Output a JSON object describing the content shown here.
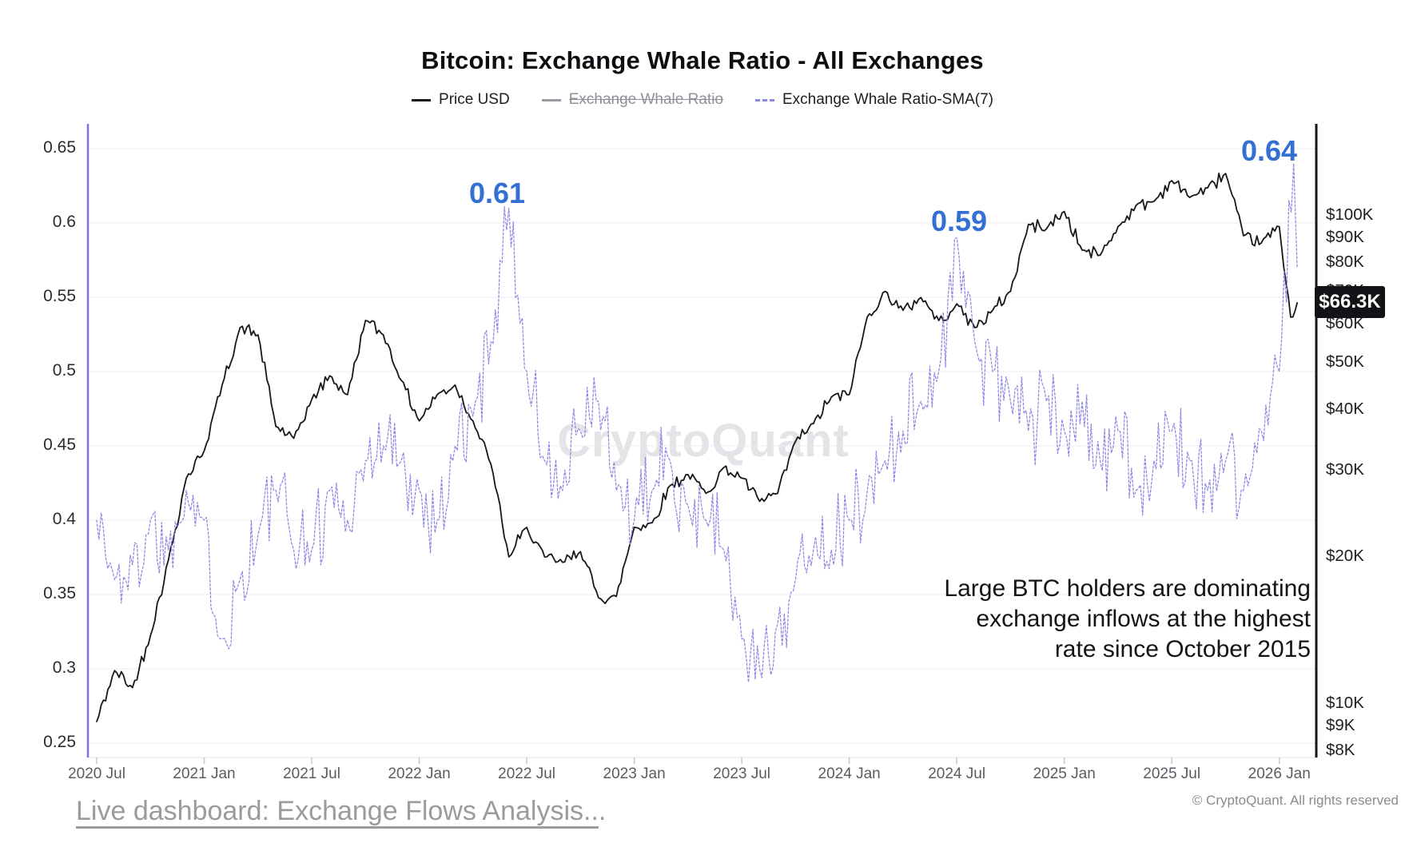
{
  "title": "Bitcoin: Exchange Whale Ratio - All Exchanges",
  "watermark": "CryptoQuant",
  "legend": {
    "items": [
      {
        "label": "Price USD",
        "swatch_color": "#17171c",
        "style": "solid",
        "disabled": false
      },
      {
        "label": "Exchange Whale Ratio",
        "swatch_color": "#9a9aa2",
        "style": "solid",
        "disabled": true
      },
      {
        "label": "Exchange Whale Ratio-SMA(7)",
        "swatch_color": "#8c86e4",
        "style": "dashed",
        "disabled": false
      }
    ]
  },
  "note": {
    "line1": "Large BTC holders are dominating",
    "line2": "exchange inflows at the highest",
    "line3": "rate since October 2015"
  },
  "footer": {
    "link_text": "Live dashboard: Exchange Flows Analysis..",
    "suffix": ".",
    "copyright": "© CryptoQuant. All rights reserved"
  },
  "chart_data": {
    "type": "line",
    "title": "Bitcoin: Exchange Whale Ratio - All Exchanges",
    "grid": "horizontal",
    "legend_position": "top",
    "annotation_color": "#3470d4",
    "last_price_label": "$66.3K",
    "y_left": {
      "label": "Exchange Whale Ratio-SMA(7)",
      "range": [
        0.25,
        0.65
      ],
      "ticks": [
        {
          "label": "0.65",
          "value": 0.65
        },
        {
          "label": "0.6",
          "value": 0.6
        },
        {
          "label": "0.55",
          "value": 0.55
        },
        {
          "label": "0.5",
          "value": 0.5
        },
        {
          "label": "0.45",
          "value": 0.45
        },
        {
          "label": "0.4",
          "value": 0.4
        },
        {
          "label": "0.35",
          "value": 0.35
        },
        {
          "label": "0.3",
          "value": 0.3
        },
        {
          "label": "0.25",
          "value": 0.25
        }
      ]
    },
    "y_right": {
      "label": "Price USD",
      "scale": "log",
      "range_thousands": [
        8,
        150
      ],
      "ticks": [
        {
          "label": "$100K",
          "value": 100
        },
        {
          "label": "$90K",
          "value": 90
        },
        {
          "label": "$80K",
          "value": 80
        },
        {
          "label": "$70K",
          "value": 70
        },
        {
          "label": "$60K",
          "value": 60
        },
        {
          "label": "$50K",
          "value": 50
        },
        {
          "label": "$40K",
          "value": 40
        },
        {
          "label": "$30K",
          "value": 30
        },
        {
          "label": "$20K",
          "value": 20
        },
        {
          "label": "$10K",
          "value": 10
        },
        {
          "label": "$9K",
          "value": 9
        },
        {
          "label": "$8K",
          "value": 8
        }
      ]
    },
    "x_axis": {
      "ticks": [
        {
          "label": "2020 Jul",
          "date": "2020-07"
        },
        {
          "label": "2021 Jan",
          "date": "2021-01"
        },
        {
          "label": "2021 Jul",
          "date": "2021-07"
        },
        {
          "label": "2022 Jan",
          "date": "2022-01"
        },
        {
          "label": "2022 Jul",
          "date": "2022-07"
        },
        {
          "label": "2023 Jan",
          "date": "2023-01"
        },
        {
          "label": "2023 Jul",
          "date": "2023-07"
        },
        {
          "label": "2024 Jan",
          "date": "2024-01"
        },
        {
          "label": "2024 Jul",
          "date": "2024-07"
        },
        {
          "label": "2025 Jan",
          "date": "2025-01"
        },
        {
          "label": "2025 Jul",
          "date": "2025-07"
        },
        {
          "label": "2026 Jan",
          "date": "2026-01"
        }
      ]
    },
    "annotations": [
      {
        "label": "0.61",
        "date": "2022-06",
        "value": 0.61
      },
      {
        "label": "0.59",
        "date": "2024-07",
        "value": 0.59
      },
      {
        "label": "0.64",
        "date": "2026-01-25",
        "value": 0.64
      }
    ],
    "series": [
      {
        "name": "Price USD",
        "axis": "right",
        "unit": "USD thousands",
        "color": "#17171c",
        "style": "solid",
        "x": [
          "2020-07",
          "2020-08",
          "2020-09",
          "2020-10",
          "2020-11",
          "2020-12",
          "2021-01",
          "2021-02",
          "2021-03",
          "2021-04",
          "2021-05",
          "2021-06",
          "2021-07",
          "2021-08",
          "2021-09",
          "2021-10",
          "2021-11",
          "2021-12",
          "2022-01",
          "2022-02",
          "2022-03",
          "2022-04",
          "2022-05",
          "2022-06",
          "2022-07",
          "2022-08",
          "2022-09",
          "2022-10",
          "2022-11",
          "2022-12",
          "2023-01",
          "2023-02",
          "2023-03",
          "2023-04",
          "2023-05",
          "2023-06",
          "2023-07",
          "2023-08",
          "2023-09",
          "2023-10",
          "2023-11",
          "2023-12",
          "2024-01",
          "2024-02",
          "2024-03",
          "2024-04",
          "2024-05",
          "2024-06",
          "2024-07",
          "2024-08",
          "2024-09",
          "2024-10",
          "2024-11",
          "2024-12",
          "2025-01",
          "2025-02",
          "2025-03",
          "2025-04",
          "2025-05",
          "2025-06",
          "2025-07",
          "2025-08",
          "2025-09",
          "2025-10",
          "2025-11",
          "2025-12",
          "2026-01",
          "2026-01-20",
          "2026-02"
        ],
        "values": [
          9.2,
          11.7,
          10.8,
          13.8,
          19.7,
          29,
          33,
          45,
          59,
          57,
          37,
          35,
          42,
          47,
          43,
          61,
          57,
          46,
          38,
          43,
          45,
          38,
          31,
          20,
          23,
          20,
          19.5,
          20.5,
          16.5,
          16.6,
          23,
          23.5,
          28,
          29.5,
          27,
          30.5,
          29,
          26,
          27,
          34.5,
          37.5,
          42.5,
          43,
          62,
          70,
          64,
          68,
          61,
          66,
          59,
          64,
          70,
          96,
          94,
          102,
          85,
          83,
          95,
          105,
          107,
          118,
          109,
          114,
          122,
          91,
          88,
          95,
          62,
          66.3
        ]
      },
      {
        "name": "Exchange Whale Ratio",
        "axis": "left",
        "hidden": true,
        "color": "#9a9aa2",
        "style": "solid"
      },
      {
        "name": "Exchange Whale Ratio-SMA(7)",
        "axis": "left",
        "color": "#8c86e4",
        "style": "dashed",
        "x": [
          "2020-07",
          "2020-08",
          "2020-09",
          "2020-10",
          "2020-11",
          "2020-12",
          "2021-01",
          "2021-02",
          "2021-03",
          "2021-04",
          "2021-05",
          "2021-06",
          "2021-07",
          "2021-08",
          "2021-09",
          "2021-10",
          "2021-11",
          "2021-12",
          "2022-01",
          "2022-02",
          "2022-03",
          "2022-04",
          "2022-05",
          "2022-06",
          "2022-07",
          "2022-08",
          "2022-09",
          "2022-10",
          "2022-11",
          "2022-12",
          "2023-01",
          "2023-02",
          "2023-03",
          "2023-04",
          "2023-05",
          "2023-06",
          "2023-07",
          "2023-08",
          "2023-09",
          "2023-10",
          "2023-11",
          "2023-12",
          "2024-01",
          "2024-02",
          "2024-03",
          "2024-04",
          "2024-05",
          "2024-06",
          "2024-07",
          "2024-08",
          "2024-09",
          "2024-10",
          "2024-11",
          "2024-12",
          "2025-01",
          "2025-02",
          "2025-03",
          "2025-04",
          "2025-05",
          "2025-06",
          "2025-07",
          "2025-08",
          "2025-09",
          "2025-10",
          "2025-11",
          "2025-12",
          "2026-01",
          "2026-01-25",
          "2026-02"
        ],
        "values": [
          0.4,
          0.36,
          0.37,
          0.4,
          0.38,
          0.42,
          0.4,
          0.32,
          0.36,
          0.39,
          0.42,
          0.38,
          0.38,
          0.42,
          0.4,
          0.44,
          0.45,
          0.44,
          0.42,
          0.4,
          0.45,
          0.47,
          0.52,
          0.61,
          0.5,
          0.44,
          0.42,
          0.46,
          0.48,
          0.42,
          0.4,
          0.42,
          0.44,
          0.41,
          0.4,
          0.38,
          0.32,
          0.3,
          0.33,
          0.36,
          0.38,
          0.38,
          0.4,
          0.42,
          0.44,
          0.46,
          0.48,
          0.5,
          0.59,
          0.52,
          0.5,
          0.48,
          0.46,
          0.48,
          0.46,
          0.48,
          0.44,
          0.46,
          0.42,
          0.44,
          0.46,
          0.44,
          0.42,
          0.44,
          0.42,
          0.46,
          0.5,
          0.64,
          0.57
        ]
      }
    ]
  }
}
